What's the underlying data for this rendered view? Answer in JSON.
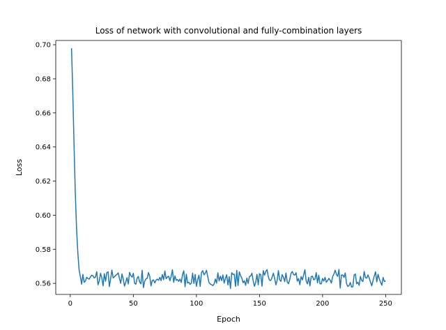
{
  "chart_data": {
    "type": "line",
    "title": "Loss of network with convolutional and fully-combination layers",
    "xlabel": "Epoch",
    "ylabel": "Loss",
    "xlim": [
      -11.5,
      262.5
    ],
    "ylim": [
      0.5535,
      0.7025
    ],
    "xticks": [
      0,
      50,
      100,
      150,
      200,
      250
    ],
    "yticks": [
      0.56,
      0.58,
      0.6,
      0.62,
      0.64,
      0.66,
      0.68,
      0.7
    ],
    "ytick_labels": [
      "0.56",
      "0.58",
      "0.60",
      "0.62",
      "0.64",
      "0.66",
      "0.68",
      "0.70"
    ],
    "grid": false,
    "colors": {
      "line": "#1f77b4",
      "axes": "#000000",
      "background": "#ffffff"
    },
    "series": [
      {
        "x": [
          1,
          2,
          3,
          4,
          5,
          6,
          7,
          8
        ],
        "y": [
          0.698,
          0.672,
          0.641,
          0.613,
          0.592,
          0.578,
          0.568,
          0.564
        ]
      }
    ],
    "noise": {
      "start_epoch": 9,
      "end_epoch": 250,
      "mean": 0.5625,
      "amplitude": 0.0045,
      "last_value": 0.5615
    }
  }
}
